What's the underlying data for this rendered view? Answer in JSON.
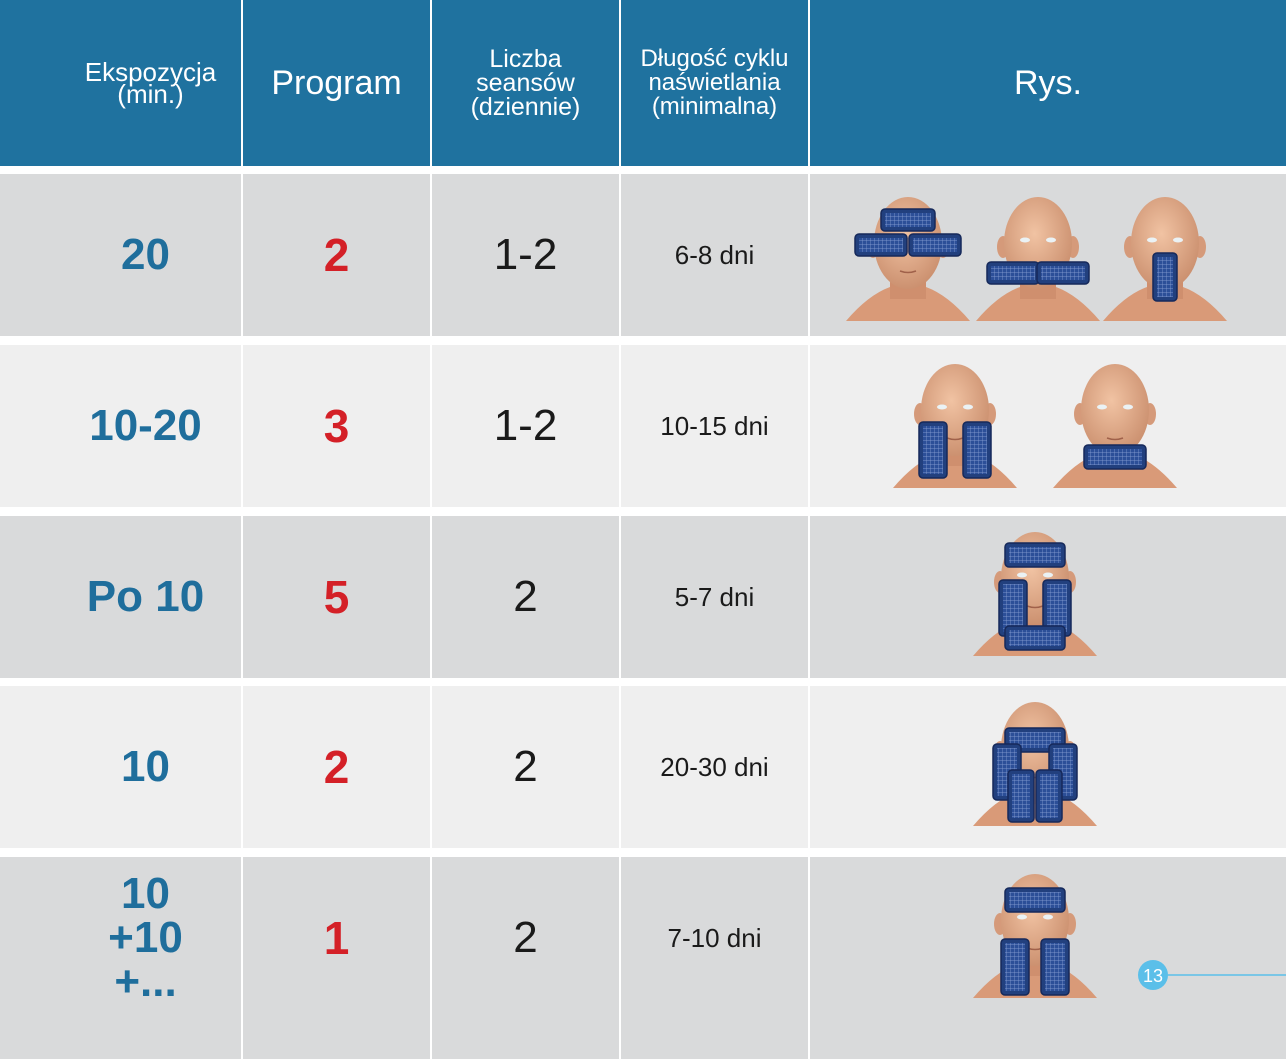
{
  "header": {
    "columns": [
      [
        "Ekspozycja",
        "(min.)"
      ],
      [
        "Program"
      ],
      [
        "Liczba",
        "seansów",
        "(dziennie)"
      ],
      [
        "Długość cyklu",
        "naświetlania",
        "(minimalna)"
      ],
      [
        "Rys."
      ]
    ]
  },
  "table": {
    "rows": [
      {
        "exposure": [
          "20"
        ],
        "program": "2",
        "sessions": "1-2",
        "cycle": "6-8 dni"
      },
      {
        "exposure": [
          "10-20"
        ],
        "program": "3",
        "sessions": "1-2",
        "cycle": "10-15 dni"
      },
      {
        "exposure": [
          "Po 10"
        ],
        "program": "5",
        "sessions": "2",
        "cycle": "5-7 dni"
      },
      {
        "exposure": [
          "10"
        ],
        "program": "2",
        "sessions": "2",
        "cycle": "20-30 dni"
      },
      {
        "exposure": [
          "10",
          "+10",
          "+..."
        ],
        "program": "1",
        "sessions": "2",
        "cycle": "7-10 dni"
      }
    ]
  },
  "page_number": "13"
}
